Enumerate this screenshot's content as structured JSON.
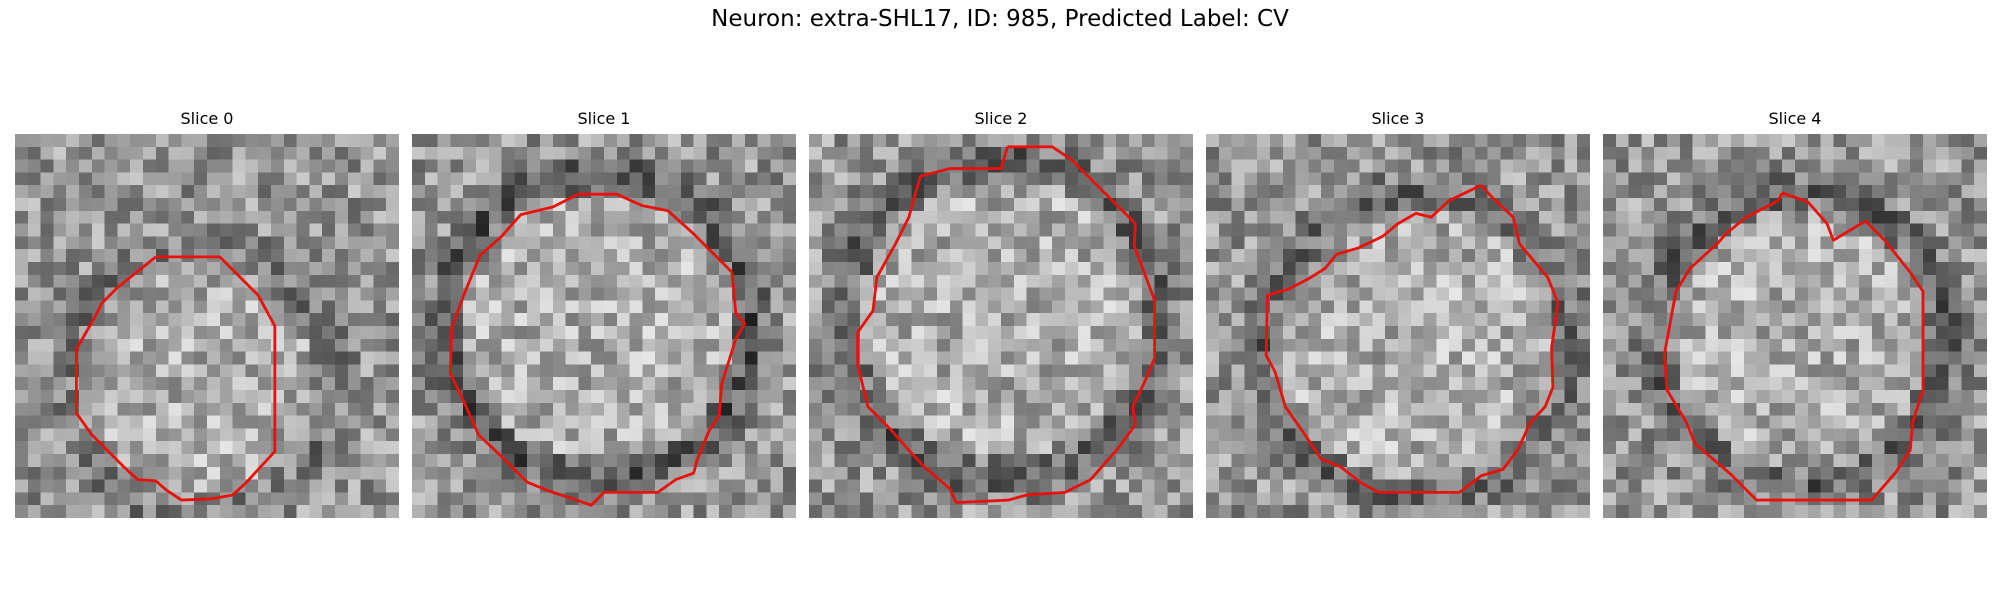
{
  "figure": {
    "title": "Neuron: extra-SHL17, ID: 985, Predicted Label: CV"
  },
  "slices": [
    {
      "label": "Slice 0"
    },
    {
      "label": "Slice 1"
    },
    {
      "label": "Slice 2"
    },
    {
      "label": "Slice 3"
    },
    {
      "label": "Slice 4"
    }
  ],
  "colors": {
    "contour": "#e8120c",
    "background": "#ffffff"
  }
}
